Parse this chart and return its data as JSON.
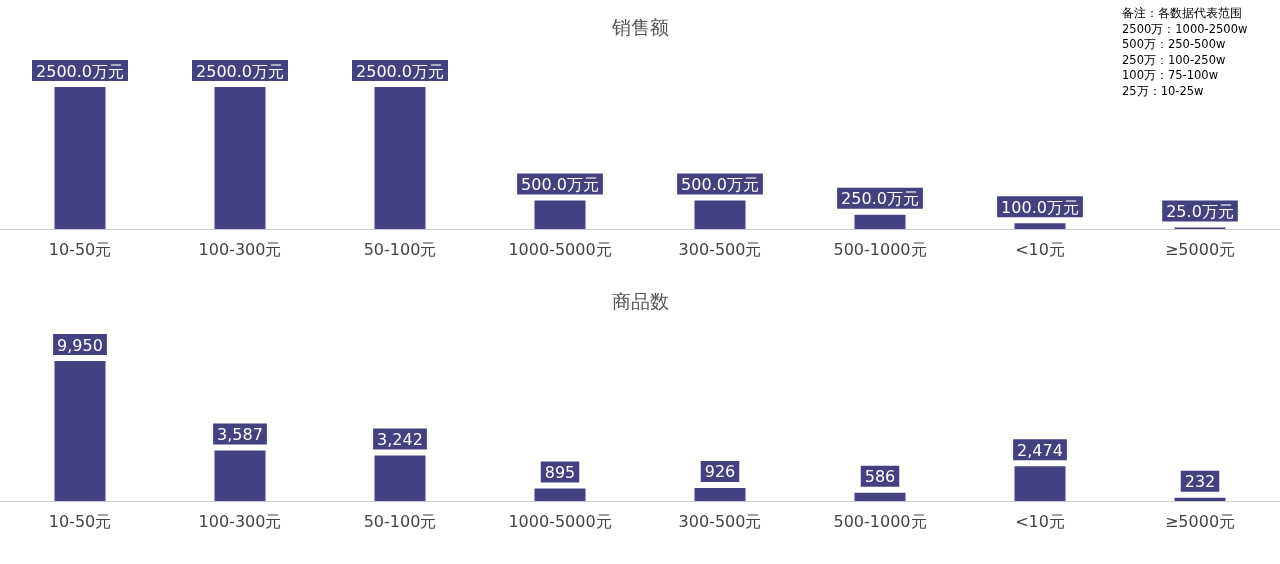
{
  "chart_data": [
    {
      "type": "bar",
      "title": "销售额",
      "categories": [
        "10-50元",
        "100-300元",
        "50-100元",
        "1000-5000元",
        "300-500元",
        "500-1000元",
        "<10元",
        "≥5000元"
      ],
      "values": [
        2500,
        2500,
        2500,
        500,
        500,
        250,
        100,
        25
      ],
      "value_labels": [
        "2500.0万元",
        "2500.0万元",
        "2500.0万元",
        "500.0万元",
        "500.0万元",
        "250.0万元",
        "100.0万元",
        "25.0万元"
      ],
      "color": "#434180",
      "tick_labels": "x",
      "grid": false,
      "annotations": [
        "备注：各数据代表范围",
        "2500万：1000-2500w",
        "500万：250-500w",
        "250万：100-250w",
        "100万：75-100w",
        "25万：10-25w"
      ]
    },
    {
      "type": "bar",
      "title": "商品数",
      "categories": [
        "10-50元",
        "100-300元",
        "50-100元",
        "1000-5000元",
        "300-500元",
        "500-1000元",
        "<10元",
        "≥5000元"
      ],
      "values": [
        9950,
        3587,
        3242,
        895,
        926,
        586,
        2474,
        232
      ],
      "value_labels": [
        "9,950",
        "3,587",
        "3,242",
        "895",
        "926",
        "586",
        "2,474",
        "232"
      ],
      "color": "#434180",
      "tick_labels": "x",
      "grid": false
    }
  ]
}
